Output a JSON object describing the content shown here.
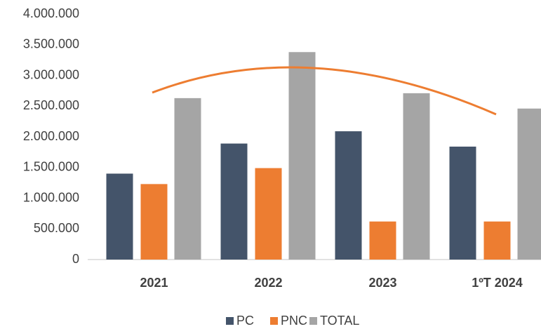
{
  "chart_data": {
    "type": "bar",
    "categories": [
      "2021",
      "2022",
      "2023",
      "1ºT 2024"
    ],
    "series": [
      {
        "name": "PC",
        "color": "#44546a",
        "values": [
          1400000,
          1890000,
          2090000,
          1840000
        ]
      },
      {
        "name": "PNC",
        "color": "#ed7d31",
        "values": [
          1230000,
          1490000,
          620000,
          620000
        ]
      },
      {
        "name": "TOTAL",
        "color": "#a5a5a5",
        "values": [
          2630000,
          3380000,
          2710000,
          2460000
        ]
      }
    ],
    "ylim": [
      0,
      4000000
    ],
    "yticks": [
      0,
      {
        "value": 500000,
        "label": "500.000"
      },
      {
        "value": 1000000,
        "label": "1.000.000"
      },
      {
        "value": 1500000,
        "label": "1.500.000"
      },
      {
        "value": 2000000,
        "label": "2.000.000"
      },
      {
        "value": 2500000,
        "label": "2.500.000"
      },
      {
        "value": 3000000,
        "label": "3.000.000"
      },
      {
        "value": 3500000,
        "label": "3.500.000"
      },
      {
        "value": 4000000,
        "label": "4.000.000"
      }
    ],
    "grid": false
  }
}
